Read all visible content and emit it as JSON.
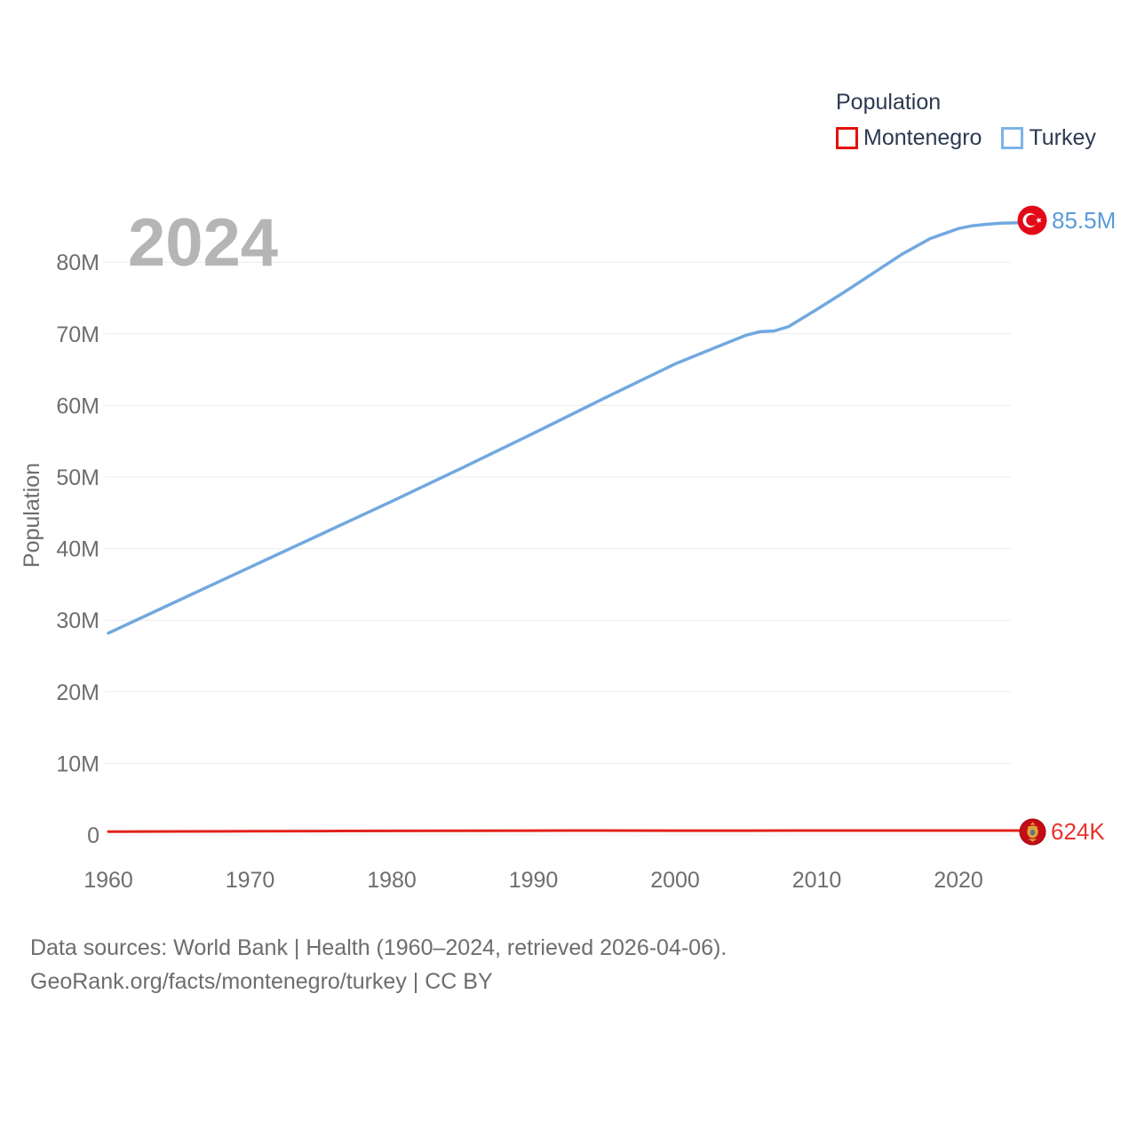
{
  "watermark": "2024",
  "legend": {
    "title": "Population",
    "items": [
      {
        "label": "Montenegro",
        "color": "#e3120b"
      },
      {
        "label": "Turkey",
        "color": "#7db4ea"
      }
    ]
  },
  "chart_data": {
    "type": "line",
    "title": "Population",
    "xlabel": "",
    "ylabel": "Population",
    "xlim": [
      1960,
      2024
    ],
    "ylim": [
      0,
      88
    ],
    "grid": true,
    "legend_position": "top-right",
    "x_ticks": [
      {
        "v": 1960,
        "label": "1960"
      },
      {
        "v": 1970,
        "label": "1970"
      },
      {
        "v": 1980,
        "label": "1980"
      },
      {
        "v": 1990,
        "label": "1990"
      },
      {
        "v": 2000,
        "label": "2000"
      },
      {
        "v": 2010,
        "label": "2010"
      },
      {
        "v": 2020,
        "label": "2020"
      }
    ],
    "y_ticks": [
      {
        "v": 0,
        "label": "0"
      },
      {
        "v": 10,
        "label": "10M"
      },
      {
        "v": 20,
        "label": "20M"
      },
      {
        "v": 30,
        "label": "30M"
      },
      {
        "v": 40,
        "label": "40M"
      },
      {
        "v": 50,
        "label": "50M"
      },
      {
        "v": 60,
        "label": "60M"
      },
      {
        "v": 70,
        "label": "70M"
      },
      {
        "v": 80,
        "label": "80M"
      }
    ],
    "series": [
      {
        "name": "Montenegro",
        "color": "#e3221b",
        "label_color": "#e8342c",
        "end_label": "624K",
        "unit": "millions",
        "points": [
          [
            1960,
            0.47
          ],
          [
            1965,
            0.5
          ],
          [
            1970,
            0.52
          ],
          [
            1975,
            0.55
          ],
          [
            1980,
            0.57
          ],
          [
            1985,
            0.59
          ],
          [
            1990,
            0.61
          ],
          [
            1995,
            0.62
          ],
          [
            2000,
            0.6
          ],
          [
            2005,
            0.61
          ],
          [
            2010,
            0.62
          ],
          [
            2015,
            0.62
          ],
          [
            2020,
            0.62
          ],
          [
            2024,
            0.624
          ]
        ]
      },
      {
        "name": "Turkey",
        "color": "#72a8e0",
        "label_color": "#5b9bd9",
        "end_label": "85.5M",
        "unit": "millions",
        "points": [
          [
            1960,
            28.2
          ],
          [
            1965,
            32.8
          ],
          [
            1970,
            37.4
          ],
          [
            1975,
            42.0
          ],
          [
            1980,
            46.6
          ],
          [
            1985,
            51.3
          ],
          [
            1990,
            56.1
          ],
          [
            1995,
            61.0
          ],
          [
            2000,
            65.8
          ],
          [
            2003,
            68.2
          ],
          [
            2005,
            69.8
          ],
          [
            2006,
            70.3
          ],
          [
            2007,
            70.4
          ],
          [
            2008,
            71.0
          ],
          [
            2010,
            73.4
          ],
          [
            2012,
            75.9
          ],
          [
            2014,
            78.5
          ],
          [
            2016,
            81.1
          ],
          [
            2018,
            83.3
          ],
          [
            2020,
            84.7
          ],
          [
            2021,
            85.1
          ],
          [
            2022,
            85.3
          ],
          [
            2023,
            85.45
          ],
          [
            2024,
            85.5
          ]
        ]
      }
    ]
  },
  "footer": {
    "line1": "Data sources: World Bank | Health (1960–2024, retrieved 2026-04-06).",
    "line2": "GeoRank.org/facts/montenegro/turkey | CC BY"
  }
}
